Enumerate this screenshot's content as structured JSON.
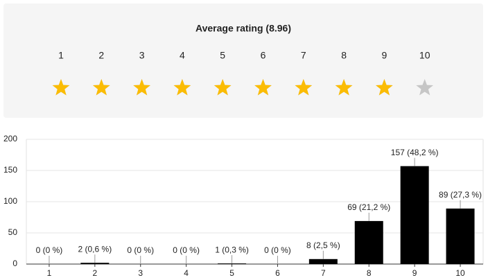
{
  "rating": {
    "average": {
      "value": 8.96,
      "label": "Average rating (8.96)"
    },
    "scale": [
      1,
      2,
      3,
      4,
      5,
      6,
      7,
      8,
      9,
      10
    ]
  },
  "chart_data": {
    "type": "bar",
    "categories": [
      "1",
      "2",
      "3",
      "4",
      "5",
      "6",
      "7",
      "8",
      "9",
      "10"
    ],
    "values": [
      0,
      2,
      0,
      0,
      1,
      0,
      8,
      69,
      157,
      89
    ],
    "value_labels": [
      "0 (0 %)",
      "2 (0,6 %)",
      "0 (0 %)",
      "0 (0 %)",
      "1 (0,3 %)",
      "0 (0 %)",
      "8 (2,5 %)",
      "69 (21,2 %)",
      "157 (48,2 %)",
      "89 (27,3 %)"
    ],
    "color": "#000000",
    "ylim": [
      0,
      200
    ],
    "yticks": [
      0,
      50,
      100,
      150,
      200
    ],
    "grid": true
  }
}
